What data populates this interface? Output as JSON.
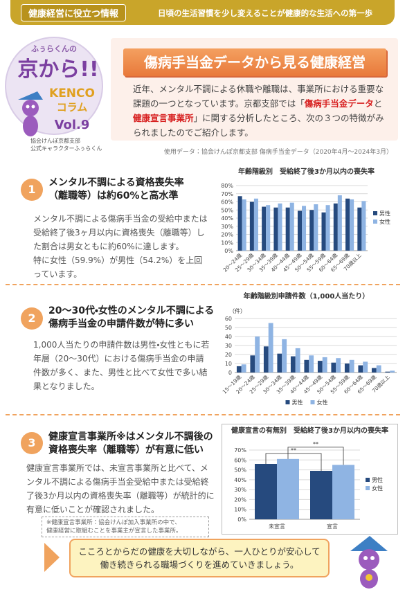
{
  "header": {
    "tag": "健康経営に役立つ情報",
    "tagline": "日頃の生活習慣を少し変えることが健康的な生活への第一歩"
  },
  "logo": {
    "kicker": "ふぅらくんの",
    "name": "京から!!",
    "kenco": "KENCO",
    "column": "コラム",
    "volume": "Vol.9",
    "caption": [
      "協会けんぽ京都支部",
      "公式キャラクターふぅらくん"
    ]
  },
  "title": "傷病手当金データから見る健康経営",
  "intro": [
    {
      "text": "近年、メンタル不調による休職や離職は、事業所における重要な課題の一つとなっています。京都支部では「",
      "highlight": false
    },
    {
      "text": "傷病手当金データ",
      "highlight": true
    },
    {
      "text": "と",
      "highlight": false
    },
    {
      "text": "健康宣言事業所",
      "highlight": true
    },
    {
      "text": "」に関する分析したところ、次の３つの特徴がみられましたのでご紹介します。",
      "highlight": false
    }
  ],
  "source": "使用データ：協会けんぽ京都支部 傷病手当金データ（2020年4月～2024年3月）",
  "sections": [
    {
      "number": "1",
      "heading": [
        "メンタル不調による資格喪失率",
        "（離職等）は約60%と高水準"
      ],
      "body": [
        "メンタル不調による傷病手当金の受給中または受給終了後3ヶ月以内に資格喪失（離職等）した割合は男女ともに約60%に達します。",
        "特に女性（59.9%）が男性（54.2%）を上回っています。"
      ]
    },
    {
      "number": "2",
      "heading": [
        "20～30代・女性のメンタル不調による",
        "傷病手当金の申請件数が特に多い"
      ],
      "body": [
        "1,000人当たりの申請件数は男性・女性ともに若年層（20～30代）における傷病手当金の申請件数が多く、また、男性と比べて女性で多い結果となりました。"
      ]
    },
    {
      "number": "3",
      "heading": [
        "健康宣言事業所※はメンタル不調後の",
        "資格喪失率（離職等）が有意に低い"
      ],
      "body": [
        "健康宣言事業所では、未宣言事業所と比べて、メンタル不調による傷病手当金受給中または受給終了後3か月以内の資格喪失率（離職等）が統計的に有意に低いことが確認されました。"
      ]
    }
  ],
  "note": [
    "※健康宣言事業所：協会けんぽ加入事業所の中で、",
    "健康経営に取組むことを事業主が宣言した事業所。"
  ],
  "footer": [
    "こころとからだの健康を大切しながら、一人ひとりが安心して",
    "働き続きられる職場づくりを進めていきましょう。"
  ],
  "chart_data": [
    {
      "type": "bar",
      "title": "年齢階級別　受給終了後3か月以内の喪失率",
      "categories": [
        "20～24歳",
        "25～29歳",
        "30～34歳",
        "35～39歳",
        "40～44歳",
        "45～49歳",
        "50～54歳",
        "55～59歳",
        "60～64歳",
        "65～69歳",
        "70歳以上"
      ],
      "series": [
        {
          "name": "男性",
          "color": "#264a7e",
          "values": [
            67,
            60,
            54,
            53,
            53,
            49,
            50,
            47,
            58,
            64,
            53
          ]
        },
        {
          "name": "女性",
          "color": "#8fb4e3",
          "values": [
            63,
            64,
            56,
            58,
            59,
            55,
            57,
            56,
            68,
            63,
            61
          ]
        }
      ],
      "ylim": [
        0,
        80
      ],
      "yticks": [
        {
          "value": 0,
          "label": "0%"
        },
        {
          "value": 10,
          "label": "10%"
        },
        {
          "value": 20,
          "label": "20%"
        },
        {
          "value": 30,
          "label": "30%"
        },
        {
          "value": 40,
          "label": "40%"
        },
        {
          "value": 50,
          "label": "50%"
        },
        {
          "value": 60,
          "label": "60%"
        },
        {
          "value": 70,
          "label": "70%"
        },
        {
          "value": 80,
          "label": "80%"
        }
      ],
      "grid": true,
      "legend": "right",
      "rotate_labels": true
    },
    {
      "type": "bar",
      "title": "年齢階級別申請件数（1,000人当たり）",
      "y_unit": "（件）",
      "categories": [
        "15～19歳",
        "20～24歳",
        "25～29歳",
        "30～34歳",
        "35～39歳",
        "40～44歳",
        "45～49歳",
        "50～54歳",
        "55～59歳",
        "60～64歳",
        "65～69歳",
        "70歳以上"
      ],
      "series": [
        {
          "name": "男性",
          "color": "#264a7e",
          "values": [
            7,
            19,
            29,
            21,
            18,
            14,
            13,
            11,
            10,
            8,
            5,
            1
          ]
        },
        {
          "name": "女性",
          "color": "#8fb4e3",
          "values": [
            9,
            40,
            55,
            37,
            27,
            19,
            17,
            16,
            14,
            12,
            8,
            2
          ]
        }
      ],
      "ylim": [
        0,
        60
      ],
      "yticks": [
        0,
        10,
        20,
        30,
        40,
        50,
        60
      ],
      "grid": true,
      "legend": "bottom",
      "rotate_labels": true
    },
    {
      "type": "bar",
      "title": "健康宣言の有無別　受給終了後3か月以内の喪失率",
      "categories": [
        "未宣言",
        "宣言"
      ],
      "series": [
        {
          "name": "男性",
          "color": "#264a7e",
          "values": [
            56,
            49
          ]
        },
        {
          "name": "女性",
          "color": "#8fb4e3",
          "values": [
            61,
            55
          ]
        }
      ],
      "annotations": [
        "**",
        "**"
      ],
      "ylim": [
        0,
        70
      ],
      "yticks": [
        {
          "value": 0,
          "label": "0%"
        },
        {
          "value": 10,
          "label": "10%"
        },
        {
          "value": 20,
          "label": "20%"
        },
        {
          "value": 30,
          "label": "30%"
        },
        {
          "value": 40,
          "label": "40%"
        },
        {
          "value": 50,
          "label": "50%"
        },
        {
          "value": 60,
          "label": "60%"
        },
        {
          "value": 70,
          "label": "70%"
        }
      ],
      "grid": true,
      "legend": "right",
      "rotate_labels": false
    }
  ]
}
